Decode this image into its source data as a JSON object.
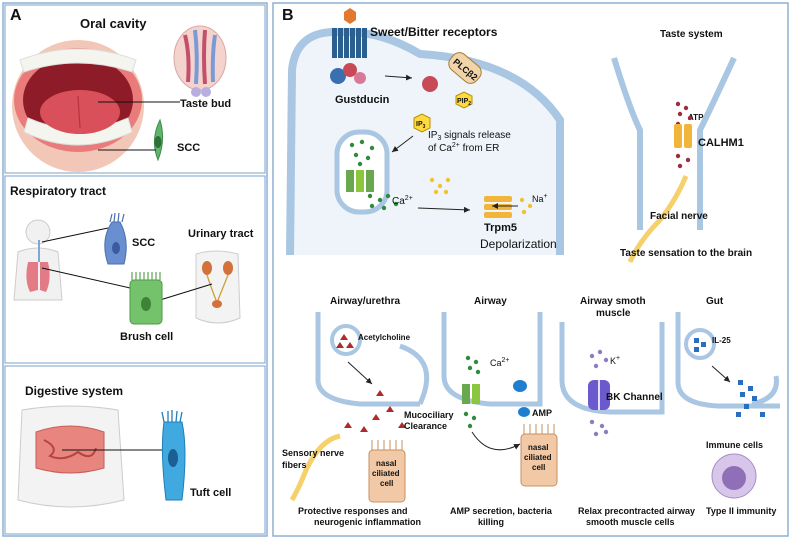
{
  "panels": {
    "A": {
      "letter": "A",
      "oral": {
        "title": "Oral cavity",
        "taste_bud": "Taste bud",
        "scc": "SCC"
      },
      "respiratory": {
        "title": "Respiratory tract",
        "scc": "SCC",
        "urinary": "Urinary tract",
        "brush_cell": "Brush cell"
      },
      "digestive": {
        "title": "Digestive system",
        "tuft_cell": "Tuft  cell"
      }
    },
    "B": {
      "letter": "B",
      "receptors": "Sweet/Bitter receptors",
      "gustducin": "Gustducin",
      "plcb2": "PLCβ2",
      "pip2": "PIP",
      "pip2_sub": "2",
      "ip3": "IP",
      "ip3_sub": "3",
      "ip3_signal_1": "IP",
      "ip3_signal_sub": "3",
      "ip3_signal_2": " signals release",
      "ca_from_er_1": "of Ca",
      "ca_from_er_sup": "2+",
      "ca_from_er_2": " from ER",
      "ca": "Ca",
      "ca_sup": "2+",
      "na": "Na",
      "na_sup": "+",
      "trpm5": "Trpm5",
      "depolarization": "Depolarization",
      "taste_system": "Taste system",
      "atp": "ATP",
      "calhm1": "CALHM1",
      "facial_nerve": "Facial nerve",
      "taste_brain": "Taste sensation to the brain",
      "airway_urethra": {
        "title": "Airway/urethra",
        "acetylcholine": "Acetylcholine",
        "mucociliary_1": "Mucociliary",
        "mucociliary_2": "Clearance",
        "sensory_1": "Sensory nerve",
        "sensory_2": "fibers",
        "cell_1": "nasal",
        "cell_2": "ciliated",
        "cell_3": "cell",
        "caption_1": "Protective responses and",
        "caption_2": "neurogenic inflammation"
      },
      "airway": {
        "title": "Airway",
        "ca": "Ca",
        "ca_sup": "2+",
        "amp": "AMP",
        "cell_1": "nasal",
        "cell_2": "ciliated",
        "cell_3": "cell",
        "caption_1": "AMP secretion, bacteria",
        "caption_2": "killing"
      },
      "smooth_muscle": {
        "title_1": "Airway smoth",
        "title_2": "muscle",
        "k": "K",
        "k_sup": "+",
        "bk": "BK Channel",
        "caption_1": "Relax precontracted airway",
        "caption_2": "smooth muscle cells"
      },
      "gut": {
        "title": "Gut",
        "il25": "IL-25",
        "immune": "Immune cells",
        "caption": "Type II immunity"
      }
    }
  },
  "colors": {
    "frame": "#8fb0d4",
    "membrane": "#a9c6e2",
    "cell_fill": "#eef4fa",
    "green_dot": "#2e8b3e",
    "red_dot": "#9b2d3f",
    "yellow_dot": "#f2c230",
    "triangle": "#b02a2a",
    "amp_blue": "#1e7fd0",
    "il25_blue": "#2a6fbf"
  }
}
